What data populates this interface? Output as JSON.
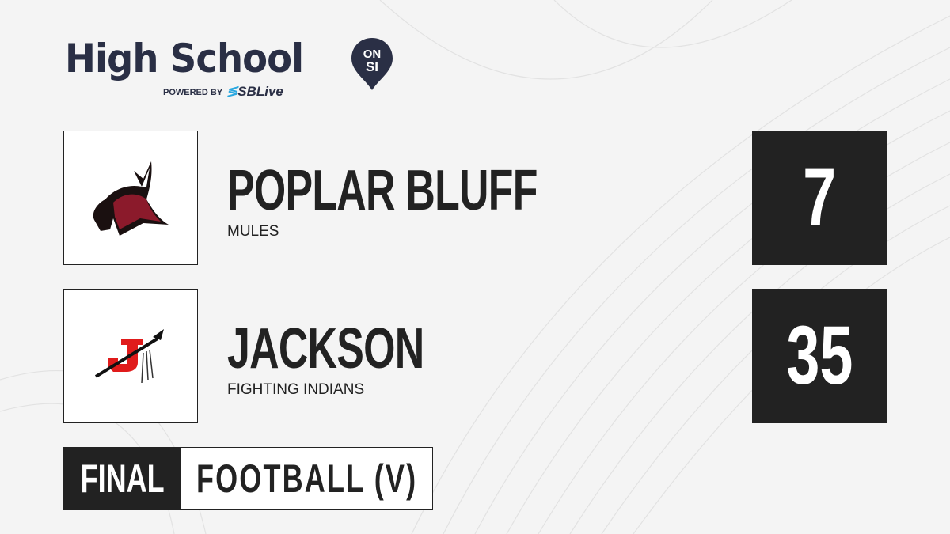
{
  "brand": {
    "title": "High School",
    "badge_top": "ON",
    "badge_bottom": "SI",
    "powered_by": "POWERED BY",
    "partner": "SBLive"
  },
  "teams": [
    {
      "name": "POPLAR BLUFF",
      "mascot": "MULES",
      "score": "7",
      "logo": "mule-head-logo",
      "logo_color": "#8b1a2b"
    },
    {
      "name": "JACKSON",
      "mascot": "FIGHTING INDIANS",
      "score": "35",
      "logo": "j-spear-logo",
      "logo_color": "#e01b1b"
    }
  ],
  "status": {
    "state": "FINAL",
    "sport": "FOOTBALL (V)"
  },
  "colors": {
    "brand": "#2a2f45",
    "accent": "#2aa8e0",
    "dark": "#222222"
  }
}
